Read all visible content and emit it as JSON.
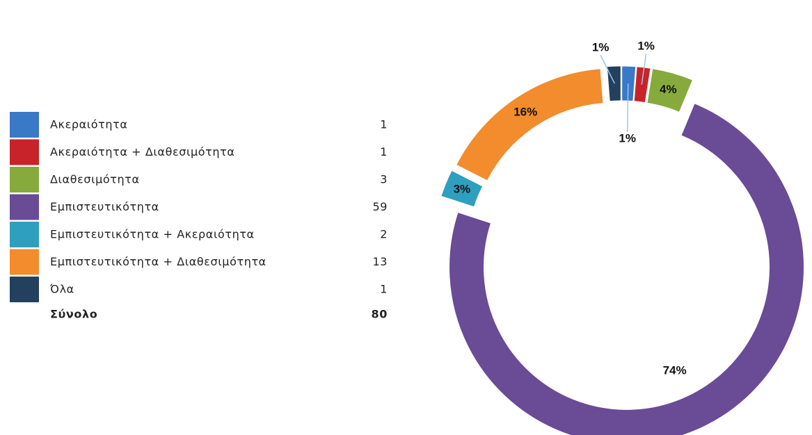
{
  "chart_data": {
    "type": "pie",
    "donut": true,
    "categories": [
      "Ακεραιότητα",
      "Ακεραιότητα + Διαθεσιμότητα",
      "Διαθεσιμότητα",
      "Εμπιστευτικότητα",
      "Εμπιστευτικότητα + Ακεραιότητα",
      "Εμπιστευτικότητα + Διαθεσιμότητα",
      "Όλα"
    ],
    "values": [
      1,
      1,
      3,
      59,
      2,
      13,
      1
    ],
    "value_labels": [
      "1%",
      "1%",
      "4%",
      "74%",
      "3%",
      "16%",
      "1%"
    ],
    "colors": [
      "#3a78c8",
      "#c8232a",
      "#86aa3c",
      "#6a4b96",
      "#2f9fbe",
      "#f28c2c",
      "#24405f"
    ],
    "total_label": "Σύνολο",
    "total": 80
  }
}
